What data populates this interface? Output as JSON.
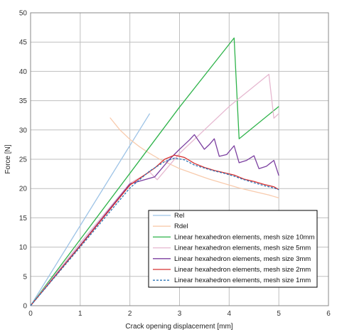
{
  "chart_data": {
    "type": "line",
    "xlabel": "Crack opening displacement [mm]",
    "ylabel": "Force [N]",
    "xlim": [
      0,
      6
    ],
    "ylim": [
      0,
      50
    ],
    "x_ticks": [
      "0",
      "1",
      "2",
      "3",
      "4",
      "5",
      "6"
    ],
    "y_ticks": [
      "0",
      "5",
      "10",
      "15",
      "20",
      "25",
      "30",
      "35",
      "40",
      "45",
      "50"
    ],
    "grid": true,
    "legend_position": "bottom-right",
    "series": [
      {
        "name": "Rel",
        "color": "#9dc3e6",
        "dash": false,
        "points": [
          [
            0,
            0
          ],
          [
            2.4,
            32.8
          ]
        ]
      },
      {
        "name": "Rdel",
        "color": "#f8cbad",
        "dash": false,
        "points": [
          [
            1.6,
            32.1
          ],
          [
            1.8,
            30.0
          ],
          [
            2.0,
            28.4
          ],
          [
            2.2,
            27.1
          ],
          [
            2.4,
            26.0
          ],
          [
            2.6,
            25.0
          ],
          [
            2.8,
            24.2
          ],
          [
            3.0,
            23.4
          ],
          [
            3.2,
            22.8
          ],
          [
            3.4,
            22.2
          ],
          [
            3.6,
            21.6
          ],
          [
            3.8,
            21.1
          ],
          [
            4.0,
            20.6
          ],
          [
            4.2,
            20.1
          ],
          [
            4.4,
            19.7
          ],
          [
            4.6,
            19.3
          ],
          [
            4.8,
            18.9
          ],
          [
            5.0,
            18.4
          ]
        ]
      },
      {
        "name": "Linear hexahedron elements, mesh size 10mm",
        "color": "#2eb34a",
        "dash": false,
        "points": [
          [
            0,
            0
          ],
          [
            1.0,
            11.3
          ],
          [
            2.0,
            22.6
          ],
          [
            3.0,
            33.9
          ],
          [
            4.1,
            45.7
          ],
          [
            4.2,
            28.5
          ],
          [
            5.0,
            34.0
          ]
        ]
      },
      {
        "name": "Linear hexahedron elements, mesh size 5mm",
        "color": "#e6b8d0",
        "dash": false,
        "points": [
          [
            0,
            0
          ],
          [
            1.0,
            10.7
          ],
          [
            2.0,
            20.9
          ],
          [
            2.4,
            22.8
          ],
          [
            2.55,
            21.5
          ],
          [
            3.0,
            26.0
          ],
          [
            4.0,
            34.0
          ],
          [
            4.8,
            39.5
          ],
          [
            4.9,
            32.0
          ],
          [
            5.0,
            32.8
          ]
        ]
      },
      {
        "name": "Linear hexahedron elements, mesh size 3mm",
        "color": "#7b3fa0",
        "dash": false,
        "points": [
          [
            0,
            0
          ],
          [
            1.0,
            10.3
          ],
          [
            2.0,
            20.8
          ],
          [
            2.3,
            21.5
          ],
          [
            2.5,
            22.0
          ],
          [
            2.8,
            25.0
          ],
          [
            3.0,
            26.7
          ],
          [
            3.2,
            28.3
          ],
          [
            3.3,
            29.2
          ],
          [
            3.5,
            26.7
          ],
          [
            3.6,
            27.5
          ],
          [
            3.7,
            28.5
          ],
          [
            3.8,
            25.5
          ],
          [
            3.95,
            25.8
          ],
          [
            4.1,
            27.3
          ],
          [
            4.2,
            24.4
          ],
          [
            4.35,
            24.8
          ],
          [
            4.5,
            25.6
          ],
          [
            4.6,
            23.4
          ],
          [
            4.75,
            23.8
          ],
          [
            4.9,
            24.8
          ],
          [
            5.0,
            22.2
          ]
        ]
      },
      {
        "name": "Linear hexahedron elements, mesh size 2mm",
        "color": "#d63030",
        "dash": false,
        "points": [
          [
            0,
            0
          ],
          [
            1.0,
            10.2
          ],
          [
            2.0,
            20.6
          ],
          [
            2.5,
            23.5
          ],
          [
            2.7,
            25.0
          ],
          [
            2.9,
            25.7
          ],
          [
            3.1,
            25.3
          ],
          [
            3.3,
            24.3
          ],
          [
            3.5,
            23.6
          ],
          [
            3.7,
            23.1
          ],
          [
            3.9,
            22.7
          ],
          [
            4.1,
            22.3
          ],
          [
            4.3,
            21.6
          ],
          [
            4.5,
            21.2
          ],
          [
            4.7,
            20.7
          ],
          [
            4.9,
            20.3
          ],
          [
            5.0,
            19.8
          ]
        ]
      },
      {
        "name": "Linear hexahedron elements, mesh size 1mm",
        "color": "#2e75b6",
        "dash": true,
        "points": [
          [
            0,
            0
          ],
          [
            1.0,
            10.0
          ],
          [
            2.0,
            20.1
          ],
          [
            2.4,
            23.0
          ],
          [
            2.7,
            24.6
          ],
          [
            2.9,
            25.2
          ],
          [
            3.1,
            24.9
          ],
          [
            3.3,
            24.0
          ],
          [
            3.5,
            23.5
          ],
          [
            3.7,
            23.0
          ],
          [
            3.9,
            22.6
          ],
          [
            4.1,
            22.1
          ],
          [
            4.3,
            21.5
          ],
          [
            4.5,
            21.0
          ],
          [
            4.7,
            20.5
          ],
          [
            4.9,
            20.1
          ],
          [
            5.0,
            19.8
          ]
        ]
      }
    ]
  }
}
